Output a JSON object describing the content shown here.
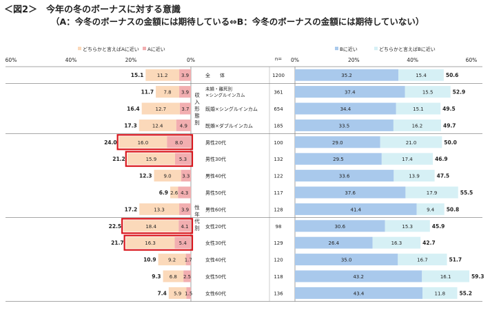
{
  "title": {
    "line1": "＜図2＞　今年の冬のボーナスに対する意識",
    "line2": "（A：今冬のボーナスの金額には期待している⇔B：今冬のボーナスの金額には期待していない）"
  },
  "colors": {
    "a_strong": "#f2aeb0",
    "a_weak": "#fbd9ba",
    "b_strong": "#a9c9ec",
    "b_weak": "#d6f0f5",
    "highlight": "#d9141b"
  },
  "chart_data": {
    "type": "bar",
    "orientation": "horizontal-diverging",
    "left_axis": {
      "ticks": [
        "60%",
        "40%",
        "20%",
        "0%"
      ]
    },
    "right_axis": {
      "ticks": [
        "0%",
        "20%",
        "40%",
        "60%"
      ]
    },
    "left_legend": [
      "どちらかと言えばAに近い",
      "Aに近い"
    ],
    "right_legend": [
      "Bに近い",
      "どちらかと言えばBに近い"
    ],
    "n_header": "n=",
    "groups": [
      {
        "label": "収入形態別",
        "rows": [
          1,
          2,
          3
        ]
      },
      {
        "label": "性年代別",
        "rows": [
          4,
          5,
          6,
          7,
          8,
          9,
          10,
          11,
          12,
          13
        ]
      }
    ],
    "rows": [
      {
        "label": "全　　体",
        "n": "1200",
        "a_total": "15.1",
        "a_weak": 11.2,
        "a_strong": 3.9,
        "b_strong": 35.2,
        "b_weak": 15.4,
        "b_total": "50.6",
        "highlight": false
      },
      {
        "label": "未婚・離死別\n×シングルインカム",
        "n": "361",
        "a_total": "11.7",
        "a_weak": 7.8,
        "a_strong": 3.9,
        "b_strong": 37.4,
        "b_weak": 15.5,
        "b_total": "52.9",
        "highlight": false
      },
      {
        "label": "既婚×シングルインカム",
        "n": "654",
        "a_total": "16.4",
        "a_weak": 12.7,
        "a_strong": 3.7,
        "b_strong": 34.4,
        "b_weak": 15.1,
        "b_total": "49.5",
        "highlight": false
      },
      {
        "label": "既婚×ダブルインカム",
        "n": "185",
        "a_total": "17.3",
        "a_weak": 12.4,
        "a_strong": 4.9,
        "b_strong": 33.5,
        "b_weak": 16.2,
        "b_total": "49.7",
        "highlight": false
      },
      {
        "label": "男性20代",
        "n": "100",
        "a_total": "24.0",
        "a_weak": 16.0,
        "a_strong": 8.0,
        "b_strong": 29.0,
        "b_weak": 21.0,
        "b_total": "50.0",
        "highlight": true
      },
      {
        "label": "男性30代",
        "n": "132",
        "a_total": "21.2",
        "a_weak": 15.9,
        "a_strong": 5.3,
        "b_strong": 29.5,
        "b_weak": 17.4,
        "b_total": "46.9",
        "highlight": true
      },
      {
        "label": "男性40代",
        "n": "122",
        "a_total": "12.3",
        "a_weak": 9.0,
        "a_strong": 3.3,
        "b_strong": 33.6,
        "b_weak": 13.9,
        "b_total": "47.5",
        "highlight": false
      },
      {
        "label": "男性50代",
        "n": "117",
        "a_total": "6.9",
        "a_weak": 2.6,
        "a_strong": 4.3,
        "b_strong": 37.6,
        "b_weak": 17.9,
        "b_total": "55.5",
        "highlight": false
      },
      {
        "label": "男性60代",
        "n": "128",
        "a_total": "17.2",
        "a_weak": 13.3,
        "a_strong": 3.9,
        "b_strong": 41.4,
        "b_weak": 9.4,
        "b_total": "50.8",
        "highlight": false
      },
      {
        "label": "女性20代",
        "n": "98",
        "a_total": "22.5",
        "a_weak": 18.4,
        "a_strong": 4.1,
        "b_strong": 30.6,
        "b_weak": 15.3,
        "b_total": "45.9",
        "highlight": true
      },
      {
        "label": "女性30代",
        "n": "129",
        "a_total": "21.7",
        "a_weak": 16.3,
        "a_strong": 5.4,
        "b_strong": 26.4,
        "b_weak": 16.3,
        "b_total": "42.7",
        "highlight": true
      },
      {
        "label": "女性40代",
        "n": "120",
        "a_total": "10.9",
        "a_weak": 9.2,
        "a_strong": 1.7,
        "b_strong": 35.0,
        "b_weak": 16.7,
        "b_total": "51.7",
        "highlight": false
      },
      {
        "label": "女性50代",
        "n": "118",
        "a_total": "9.3",
        "a_weak": 6.8,
        "a_strong": 2.5,
        "b_strong": 43.2,
        "b_weak": 16.1,
        "b_total": "59.3",
        "highlight": false
      },
      {
        "label": "女性60代",
        "n": "136",
        "a_total": "7.4",
        "a_weak": 5.9,
        "a_strong": 1.5,
        "b_strong": 43.4,
        "b_weak": 11.8,
        "b_total": "55.2",
        "highlight": false
      }
    ]
  }
}
